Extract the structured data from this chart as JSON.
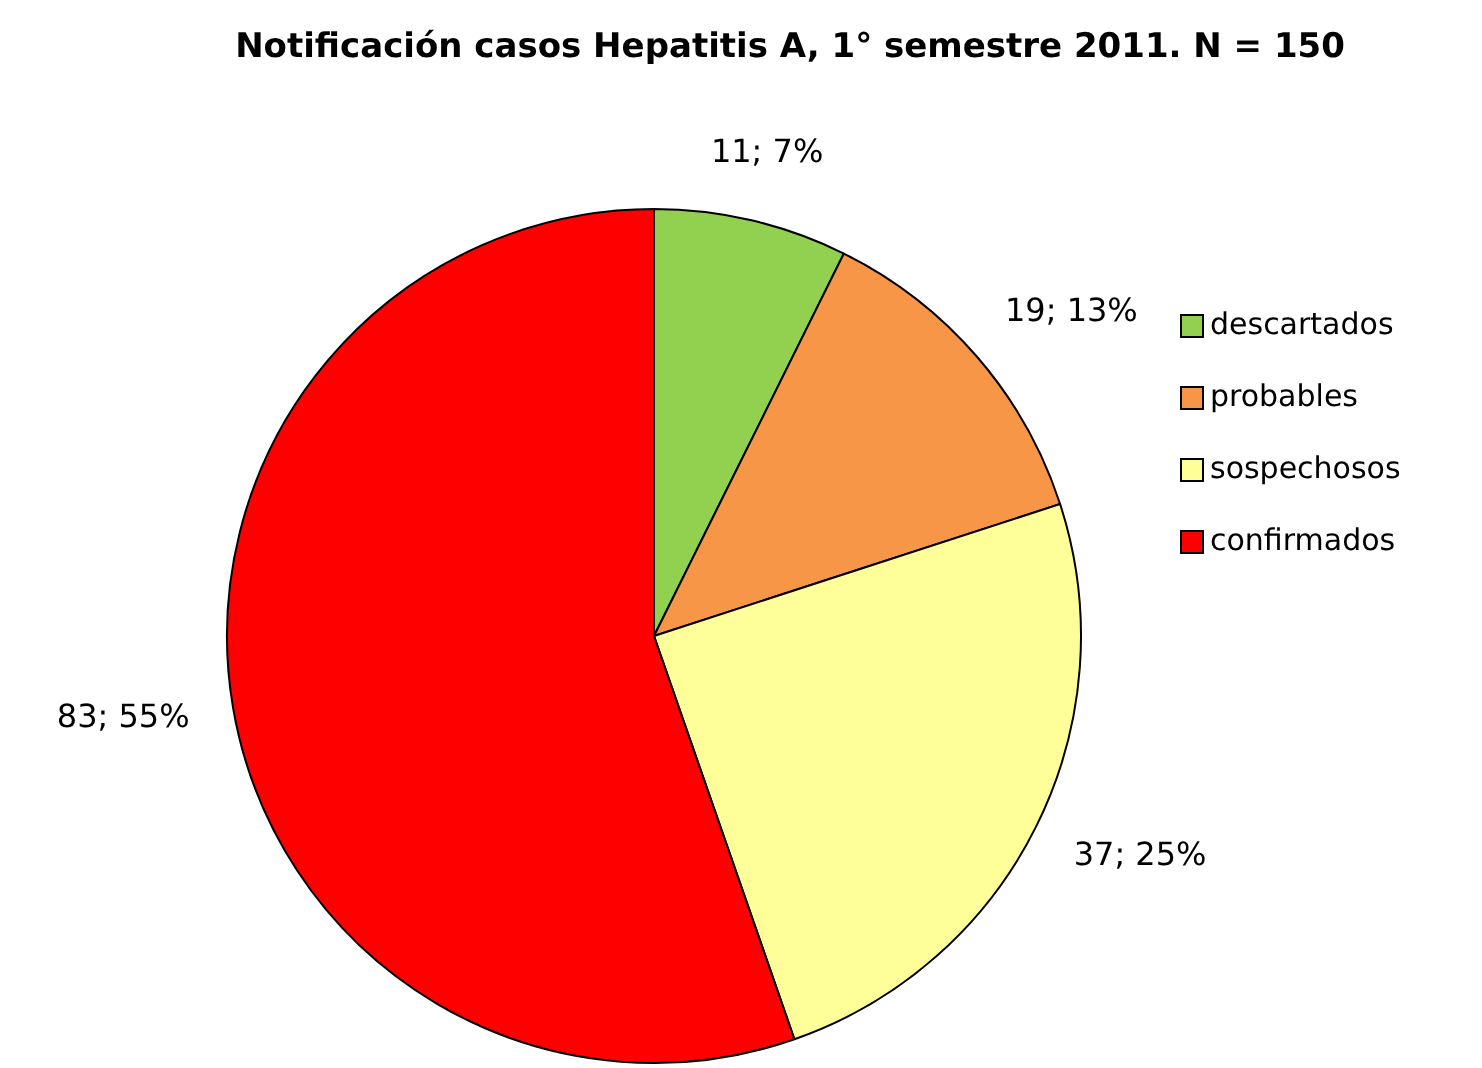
{
  "chart_data": {
    "type": "pie",
    "title": "Notificación casos Hepatitis A, 1° semestre 2011. N = 150",
    "categories": [
      "descartados",
      "probables",
      "sospechosos",
      "confirmados"
    ],
    "values": [
      11,
      19,
      37,
      83
    ],
    "colors": [
      "#92d050",
      "#f79646",
      "#ffff99",
      "#ff0000"
    ],
    "value_labels": [
      "11; 7%",
      "19; 13%",
      "37; 25%",
      "83; 55%"
    ],
    "legend": "right"
  }
}
